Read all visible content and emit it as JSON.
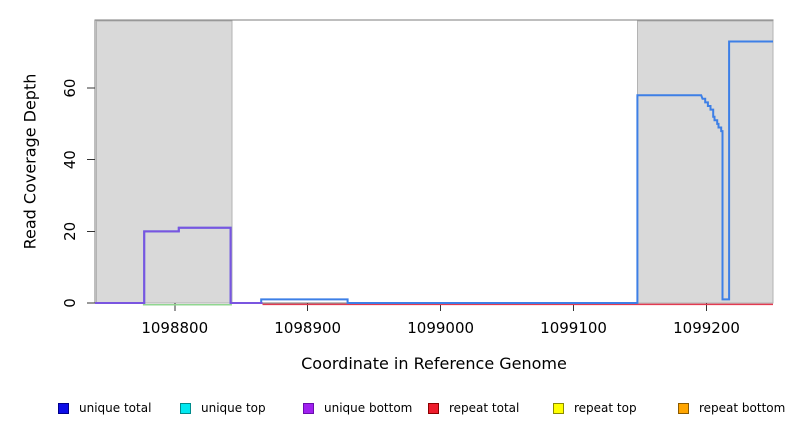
{
  "chart_data": {
    "type": "line",
    "subtype": "step-coverage",
    "title": "",
    "xlabel": "Coordinate in Reference Genome",
    "ylabel": "Read Coverage Depth",
    "xlim": [
      1098740,
      1099250
    ],
    "ylim": [
      0,
      79
    ],
    "xticks": [
      1098800,
      1098900,
      1099000,
      1099100,
      1099200
    ],
    "yticks": [
      0,
      20,
      40,
      60
    ],
    "grid": false,
    "plot_background": "#ffffff",
    "frame_color": "#7d7d7d",
    "tick_color": "#333333",
    "shaded_regions": [
      {
        "name": "left-repeat-region",
        "x0": 1098741,
        "x1": 1098843,
        "fill": "#d9d9d9",
        "border": "#b3b3b3"
      },
      {
        "name": "right-repeat-region",
        "x0": 1099148,
        "x1": 1099250,
        "fill": "#d9d9d9",
        "border": "#b3b3b3"
      }
    ],
    "series": [
      {
        "name": "annotation segment",
        "color": "#90d690",
        "width": 1.5,
        "dy": 1.7,
        "points": [
          [
            1098776,
            0
          ],
          [
            1098843,
            0
          ]
        ]
      },
      {
        "name": "repeat total",
        "color": "#e23a50",
        "width": 1.5,
        "dy": 1.4,
        "points": [
          [
            1098866,
            0
          ],
          [
            1099250,
            0
          ]
        ]
      },
      {
        "name": "unique total",
        "color": "#3d7fe6",
        "width": 2,
        "dy": 0,
        "points": [
          [
            1098740,
            0
          ],
          [
            1098777,
            0
          ],
          [
            1098777,
            20
          ],
          [
            1098803,
            20
          ],
          [
            1098803,
            21
          ],
          [
            1098842,
            21
          ],
          [
            1098842,
            0
          ],
          [
            1098865,
            0
          ],
          [
            1098865,
            1
          ],
          [
            1098930,
            1
          ],
          [
            1098930,
            0
          ],
          [
            1099148,
            0
          ],
          [
            1099148,
            58
          ],
          [
            1099196,
            58
          ],
          [
            1099197,
            57
          ],
          [
            1099199,
            57
          ],
          [
            1099199,
            56
          ],
          [
            1099201,
            56
          ],
          [
            1099201,
            55
          ],
          [
            1099203,
            55
          ],
          [
            1099203,
            54
          ],
          [
            1099205,
            54
          ],
          [
            1099205,
            52
          ],
          [
            1099206,
            52
          ],
          [
            1099206,
            51
          ],
          [
            1099208,
            51
          ],
          [
            1099208,
            50
          ],
          [
            1099209,
            50
          ],
          [
            1099209,
            49
          ],
          [
            1099211,
            49
          ],
          [
            1099211,
            48
          ],
          [
            1099212,
            48
          ],
          [
            1099212,
            1
          ],
          [
            1099217,
            1
          ],
          [
            1099217,
            73
          ],
          [
            1099250,
            73
          ]
        ]
      },
      {
        "name": "unique bottom",
        "color": "#7a55e0",
        "width": 2,
        "dy": 0,
        "points": [
          [
            1098740,
            0
          ],
          [
            1098777,
            0
          ],
          [
            1098777,
            20
          ],
          [
            1098803,
            20
          ],
          [
            1098803,
            21
          ],
          [
            1098842,
            21
          ],
          [
            1098842,
            0
          ],
          [
            1098866,
            0
          ]
        ]
      }
    ],
    "legend": {
      "position": "bottom",
      "items": [
        {
          "label": "unique total",
          "fill": "#0d0de8",
          "border": "#00008b"
        },
        {
          "label": "unique top",
          "fill": "#00e8f0",
          "border": "#008b8b"
        },
        {
          "label": "unique bottom",
          "fill": "#a020f0",
          "border": "#6a0dad"
        },
        {
          "label": "repeat total",
          "fill": "#ee1c2c",
          "border": "#8b0000"
        },
        {
          "label": "repeat top",
          "fill": "#ffff00",
          "border": "#8b8b00"
        },
        {
          "label": "repeat bottom",
          "fill": "#ffa500",
          "border": "#8b5a00"
        }
      ]
    }
  }
}
